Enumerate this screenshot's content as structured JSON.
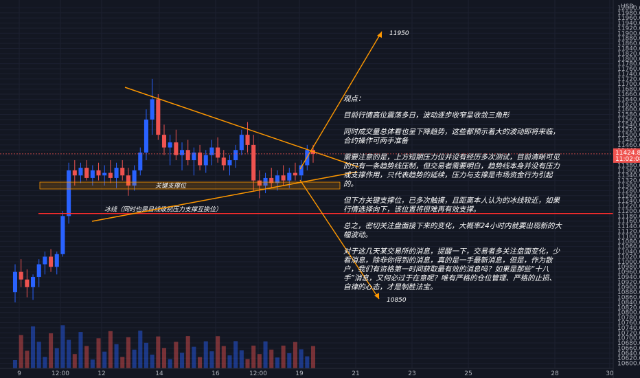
{
  "currency": "USD",
  "chart_data": {
    "type": "candlestick",
    "y_axis": {
      "min": 10580,
      "max": 12020,
      "ticks": [
        12000,
        11980,
        11960,
        11940,
        11920,
        11900,
        11880,
        11860,
        11840,
        11820,
        11800,
        11780,
        11760,
        11740,
        11720,
        11700,
        11680,
        11660,
        11640,
        11620,
        11600,
        11580,
        11560,
        11540,
        11520,
        11500,
        11480,
        11460,
        11440,
        11420,
        11400,
        11380,
        11360,
        11340,
        11320,
        11300,
        11280,
        11260,
        11240,
        11220,
        11200,
        11180,
        11160,
        11140,
        11120,
        11100,
        11080,
        11060,
        11040,
        11020,
        11000,
        10980,
        10960,
        10940,
        10920,
        10900,
        10880,
        10860,
        10840,
        10820,
        10800,
        10780,
        10760,
        10740,
        10720,
        10700,
        10680,
        10660,
        10640,
        10620,
        10600
      ]
    },
    "x_axis": {
      "tick_labels": [
        "9",
        "12:00",
        "12",
        "14",
        "16",
        "12:00",
        "19",
        "21",
        "23",
        "25",
        "28",
        "30"
      ]
    },
    "last_price": {
      "value": "11424.81",
      "countdown": "11:02:08",
      "color": "#ef5350"
    },
    "ohlc_points": [
      {
        "o": 10880,
        "h": 10990,
        "l": 10840,
        "c": 10960
      },
      {
        "o": 10960,
        "h": 11010,
        "l": 10900,
        "c": 10930
      },
      {
        "o": 10930,
        "h": 10970,
        "l": 10860,
        "c": 10900
      },
      {
        "o": 10900,
        "h": 10950,
        "l": 10850,
        "c": 10940
      },
      {
        "o": 10940,
        "h": 11010,
        "l": 10900,
        "c": 10990
      },
      {
        "o": 10990,
        "h": 11040,
        "l": 10950,
        "c": 11020
      },
      {
        "o": 11020,
        "h": 11050,
        "l": 10960,
        "c": 10980
      },
      {
        "o": 10980,
        "h": 11040,
        "l": 10950,
        "c": 11030
      },
      {
        "o": 11030,
        "h": 11200,
        "l": 11020,
        "c": 11180
      },
      {
        "o": 11180,
        "h": 11390,
        "l": 11150,
        "c": 11360
      },
      {
        "o": 11360,
        "h": 11400,
        "l": 11300,
        "c": 11340
      },
      {
        "o": 11340,
        "h": 11390,
        "l": 11310,
        "c": 11370
      },
      {
        "o": 11370,
        "h": 11400,
        "l": 11320,
        "c": 11330
      },
      {
        "o": 11330,
        "h": 11380,
        "l": 11300,
        "c": 11360
      },
      {
        "o": 11360,
        "h": 11390,
        "l": 11320,
        "c": 11340
      },
      {
        "o": 11340,
        "h": 11380,
        "l": 11300,
        "c": 11350
      },
      {
        "o": 11350,
        "h": 11400,
        "l": 11310,
        "c": 11330
      },
      {
        "o": 11330,
        "h": 11390,
        "l": 11290,
        "c": 11370
      },
      {
        "o": 11370,
        "h": 11400,
        "l": 11320,
        "c": 11340
      },
      {
        "o": 11340,
        "h": 11370,
        "l": 11260,
        "c": 11300
      },
      {
        "o": 11300,
        "h": 11380,
        "l": 11280,
        "c": 11360
      },
      {
        "o": 11360,
        "h": 11450,
        "l": 11340,
        "c": 11430
      },
      {
        "o": 11430,
        "h": 11600,
        "l": 11400,
        "c": 11560
      },
      {
        "o": 11560,
        "h": 11720,
        "l": 11500,
        "c": 11640
      },
      {
        "o": 11640,
        "h": 11660,
        "l": 11480,
        "c": 11500
      },
      {
        "o": 11500,
        "h": 11540,
        "l": 11420,
        "c": 11450
      },
      {
        "o": 11450,
        "h": 11500,
        "l": 11380,
        "c": 11470
      },
      {
        "o": 11470,
        "h": 11520,
        "l": 11400,
        "c": 11420
      },
      {
        "o": 11420,
        "h": 11470,
        "l": 11360,
        "c": 11440
      },
      {
        "o": 11440,
        "h": 11480,
        "l": 11380,
        "c": 11400
      },
      {
        "o": 11400,
        "h": 11450,
        "l": 11340,
        "c": 11430
      },
      {
        "o": 11430,
        "h": 11460,
        "l": 11360,
        "c": 11380
      },
      {
        "o": 11380,
        "h": 11440,
        "l": 11350,
        "c": 11420
      },
      {
        "o": 11420,
        "h": 11480,
        "l": 11380,
        "c": 11450
      },
      {
        "o": 11450,
        "h": 11490,
        "l": 11390,
        "c": 11410
      },
      {
        "o": 11410,
        "h": 11440,
        "l": 11360,
        "c": 11380
      },
      {
        "o": 11380,
        "h": 11420,
        "l": 11340,
        "c": 11400
      },
      {
        "o": 11400,
        "h": 11460,
        "l": 11370,
        "c": 11440
      },
      {
        "o": 11440,
        "h": 11520,
        "l": 11420,
        "c": 11500
      },
      {
        "o": 11500,
        "h": 11550,
        "l": 11430,
        "c": 11460
      },
      {
        "o": 11460,
        "h": 11500,
        "l": 11280,
        "c": 11320
      },
      {
        "o": 11320,
        "h": 11360,
        "l": 11250,
        "c": 11300
      },
      {
        "o": 11300,
        "h": 11350,
        "l": 11270,
        "c": 11330
      },
      {
        "o": 11330,
        "h": 11370,
        "l": 11290,
        "c": 11310
      },
      {
        "o": 11310,
        "h": 11360,
        "l": 11280,
        "c": 11340
      },
      {
        "o": 11340,
        "h": 11380,
        "l": 11300,
        "c": 11320
      },
      {
        "o": 11320,
        "h": 11370,
        "l": 11290,
        "c": 11350
      },
      {
        "o": 11350,
        "h": 11390,
        "l": 11320,
        "c": 11340
      },
      {
        "o": 11340,
        "h": 11400,
        "l": 11320,
        "c": 11380
      },
      {
        "o": 11380,
        "h": 11460,
        "l": 11360,
        "c": 11440
      },
      {
        "o": 11440,
        "h": 11460,
        "l": 11390,
        "c": 11424.81
      }
    ],
    "horizontal_levels": [
      {
        "value": 11300,
        "label": "关键支撑位",
        "style": "band"
      },
      {
        "value": 11190,
        "label": "冰线（同时也是日线级别压力支撑互换位）",
        "style": "line",
        "color": "#ff2d2d"
      }
    ],
    "targets": [
      "11950",
      "10850"
    ],
    "commentary": [
      "观点：",
      "目前行情高位震荡多日，波动逐步收窄呈收敛三角形",
      "同时成交量总体看也呈下降趋势，这些都预示着大的波动即将来临，合约操作可两手准备",
      "需要注意的是，上方短期压力位并没有经历多次测试，目前清晰可见的只有一条趋势线压制，但交易者需要明白，趋势线本身并没有压力或支撑作用，只代表趋势的延续，压力与支撑是市场资金行为引起的。",
      "但下方关键支撑位，已多次触摸，且距离本人认为的冰线较近，如果行情选择向下，该位置将很难再有效支撑。",
      "总之，密切关注盘面接下来的变化，大概率24小时内就要出现新的大幅波动。",
      "对于这几天某交易所的消息，提醒一下，交易者多关注盘面变化，少看消息，除非你得到的消息，真的是一手最新消息，但是，作为散户，我们有资格第一时间获取最有效的消息吗？如果是那些“十八手”消息，又何必过于在意呢？唯有严格的仓位管理、严格的止损、自律的心态，才是制胜法宝。"
    ]
  }
}
